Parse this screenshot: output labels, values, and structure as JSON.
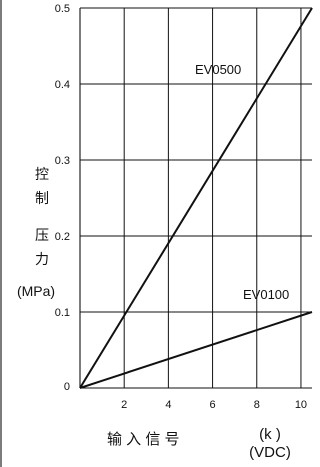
{
  "chart_data": {
    "type": "line",
    "xlabel": "输 入 信 号",
    "xunit_top": "(k )",
    "xunit_bottom": "(VDC)",
    "ylabel_chars": [
      "控",
      "制",
      "压",
      "力"
    ],
    "ylabel_unit": "(MPa)",
    "xlim": [
      0,
      10.5
    ],
    "ylim": [
      0,
      0.5
    ],
    "x_ticks": [
      "2",
      "4",
      "6",
      "8",
      "10"
    ],
    "y_ticks": [
      "0",
      "0.1",
      "0.2",
      "0.3",
      "0.4",
      "0.5"
    ],
    "grid": true,
    "series": [
      {
        "name": "EV0500",
        "x": [
          0,
          10.5
        ],
        "y": [
          0,
          0.5
        ]
      },
      {
        "name": "EV0100",
        "x": [
          0,
          10.5
        ],
        "y": [
          0,
          0.1
        ]
      }
    ]
  }
}
